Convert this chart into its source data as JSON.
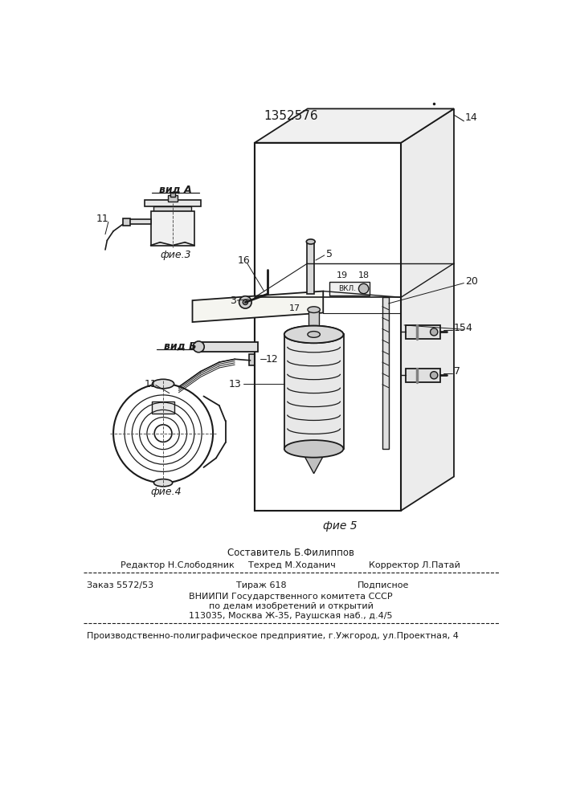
{
  "patent_number": "1352576",
  "fig3_caption": "фие.3",
  "fig4_caption": "фие.4",
  "fig5_caption": "фие 5",
  "label_vidA": "вид А",
  "label_vidB": "вид Б",
  "footer_compiler": "Составитель Б.Филиппов",
  "footer_editor": "Редактор Н.Слободяник",
  "footer_techred": "Техред М.Ходанич",
  "footer_corrector": "Корректор Л.Патай",
  "footer_order": "Заказ 5572/53",
  "footer_tirage": "Тираж 618",
  "footer_podpisnoe": "Подписное",
  "footer_vniip": "ВНИИПИ Государственного комитета СССР",
  "footer_podelam": "по делам изобретений и открытий",
  "footer_address": "113035, Москва Ж-35, Раушская наб., д.4/5",
  "footer_production": "Производственно-полиграфическое предприятие, г.Ужгород, ул.Проектная, 4",
  "bg_color": "#ffffff",
  "lc": "#1a1a1a"
}
